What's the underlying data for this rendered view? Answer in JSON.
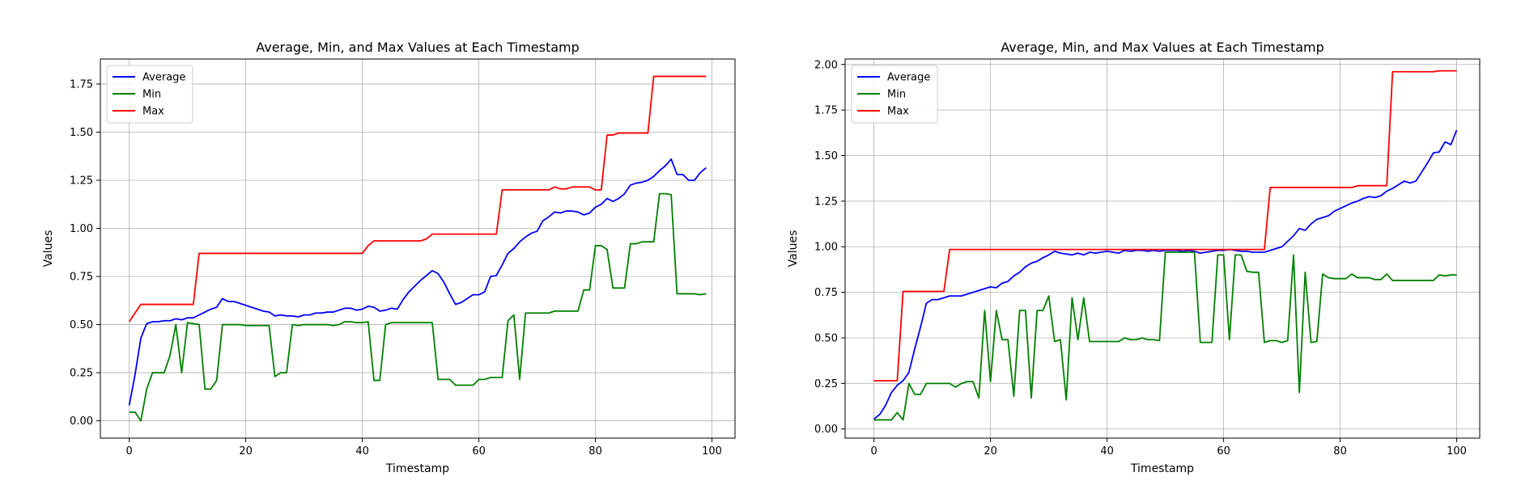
{
  "chart_data": [
    {
      "type": "line",
      "title": "Average, Min, and Max Values at Each Timestamp",
      "xlabel": "Timestamp",
      "ylabel": "Values",
      "xlim": [
        -4.95,
        103.95
      ],
      "ylim": [
        -0.09,
        1.88
      ],
      "xticks": [
        0,
        20,
        40,
        60,
        80,
        100
      ],
      "yticks": [
        0.0,
        0.25,
        0.5,
        0.75,
        1.0,
        1.25,
        1.5,
        1.75
      ],
      "ytick_labels": [
        "0.00",
        "0.25",
        "0.50",
        "0.75",
        "1.00",
        "1.25",
        "1.50",
        "1.75"
      ],
      "grid": true,
      "legend_position": "upper-left",
      "series": [
        {
          "name": "Average",
          "color": "#0000ff",
          "values": [
            0.08,
            0.24,
            0.43,
            0.505,
            0.515,
            0.515,
            0.52,
            0.52,
            0.53,
            0.525,
            0.535,
            0.535,
            0.55,
            0.565,
            0.58,
            0.59,
            0.635,
            0.62,
            0.62,
            0.61,
            0.6,
            0.59,
            0.58,
            0.57,
            0.565,
            0.545,
            0.55,
            0.545,
            0.545,
            0.54,
            0.55,
            0.55,
            0.56,
            0.56,
            0.565,
            0.565,
            0.575,
            0.585,
            0.585,
            0.575,
            0.58,
            0.595,
            0.59,
            0.57,
            0.575,
            0.585,
            0.58,
            0.63,
            0.67,
            0.7,
            0.73,
            0.755,
            0.78,
            0.765,
            0.72,
            0.66,
            0.605,
            0.615,
            0.635,
            0.655,
            0.655,
            0.67,
            0.75,
            0.755,
            0.81,
            0.87,
            0.895,
            0.93,
            0.955,
            0.975,
            0.985,
            1.04,
            1.06,
            1.085,
            1.08,
            1.09,
            1.09,
            1.085,
            1.07,
            1.08,
            1.11,
            1.125,
            1.155,
            1.14,
            1.155,
            1.18,
            1.225,
            1.235,
            1.24,
            1.25,
            1.27,
            1.3,
            1.325,
            1.36,
            1.28,
            1.28,
            1.25,
            1.25,
            1.29,
            1.315
          ]
        },
        {
          "name": "Min",
          "color": "#008000",
          "values": [
            0.045,
            0.045,
            0.0,
            0.165,
            0.25,
            0.25,
            0.25,
            0.34,
            0.5,
            0.25,
            0.51,
            0.505,
            0.5,
            0.165,
            0.165,
            0.21,
            0.5,
            0.5,
            0.5,
            0.5,
            0.495,
            0.495,
            0.495,
            0.495,
            0.495,
            0.23,
            0.25,
            0.25,
            0.5,
            0.495,
            0.5,
            0.5,
            0.5,
            0.5,
            0.5,
            0.495,
            0.5,
            0.515,
            0.515,
            0.51,
            0.51,
            0.515,
            0.21,
            0.21,
            0.5,
            0.51,
            0.51,
            0.51,
            0.51,
            0.51,
            0.51,
            0.51,
            0.51,
            0.215,
            0.215,
            0.215,
            0.185,
            0.185,
            0.185,
            0.185,
            0.215,
            0.215,
            0.225,
            0.225,
            0.225,
            0.52,
            0.55,
            0.215,
            0.56,
            0.56,
            0.56,
            0.56,
            0.56,
            0.57,
            0.57,
            0.57,
            0.57,
            0.57,
            0.68,
            0.68,
            0.91,
            0.91,
            0.89,
            0.69,
            0.69,
            0.69,
            0.92,
            0.92,
            0.93,
            0.93,
            0.93,
            1.18,
            1.18,
            1.175,
            0.66,
            0.66,
            0.66,
            0.66,
            0.655,
            0.66
          ]
        },
        {
          "name": "Max",
          "color": "#ff0000",
          "values": [
            0.515,
            0.56,
            0.605,
            0.605,
            0.605,
            0.605,
            0.605,
            0.605,
            0.605,
            0.605,
            0.605,
            0.605,
            0.87,
            0.87,
            0.87,
            0.87,
            0.87,
            0.87,
            0.87,
            0.87,
            0.87,
            0.87,
            0.87,
            0.87,
            0.87,
            0.87,
            0.87,
            0.87,
            0.87,
            0.87,
            0.87,
            0.87,
            0.87,
            0.87,
            0.87,
            0.87,
            0.87,
            0.87,
            0.87,
            0.87,
            0.87,
            0.91,
            0.935,
            0.935,
            0.935,
            0.935,
            0.935,
            0.935,
            0.935,
            0.935,
            0.935,
            0.945,
            0.97,
            0.97,
            0.97,
            0.97,
            0.97,
            0.97,
            0.97,
            0.97,
            0.97,
            0.97,
            0.97,
            0.97,
            1.2,
            1.2,
            1.2,
            1.2,
            1.2,
            1.2,
            1.2,
            1.2,
            1.2,
            1.215,
            1.205,
            1.205,
            1.215,
            1.215,
            1.215,
            1.215,
            1.2,
            1.2,
            1.485,
            1.485,
            1.495,
            1.495,
            1.495,
            1.495,
            1.495,
            1.495,
            1.79,
            1.79,
            1.79,
            1.79,
            1.79,
            1.79,
            1.79,
            1.79,
            1.79,
            1.79
          ]
        }
      ]
    },
    {
      "type": "line",
      "title": "Average, Min, and Max Values at Each Timestamp",
      "xlabel": "Timestamp",
      "ylabel": "Values",
      "xlim": [
        -4.95,
        103.95
      ],
      "ylim": [
        -0.05,
        2.03
      ],
      "xticks": [
        0,
        20,
        40,
        60,
        80,
        100
      ],
      "yticks": [
        0.0,
        0.25,
        0.5,
        0.75,
        1.0,
        1.25,
        1.5,
        1.75,
        2.0
      ],
      "ytick_labels": [
        "0.00",
        "0.25",
        "0.50",
        "0.75",
        "1.00",
        "1.25",
        "1.50",
        "1.75",
        "2.00"
      ],
      "grid": true,
      "legend_position": "upper-left",
      "series": [
        {
          "name": "Average",
          "color": "#0000ff",
          "values": [
            0.055,
            0.08,
            0.13,
            0.2,
            0.24,
            0.265,
            0.31,
            0.44,
            0.56,
            0.69,
            0.71,
            0.71,
            0.72,
            0.73,
            0.73,
            0.73,
            0.74,
            0.75,
            0.76,
            0.77,
            0.78,
            0.775,
            0.8,
            0.81,
            0.84,
            0.86,
            0.89,
            0.91,
            0.92,
            0.94,
            0.955,
            0.975,
            0.965,
            0.96,
            0.955,
            0.965,
            0.955,
            0.97,
            0.965,
            0.97,
            0.975,
            0.97,
            0.965,
            0.98,
            0.975,
            0.98,
            0.98,
            0.975,
            0.98,
            0.975,
            0.98,
            0.98,
            0.98,
            0.975,
            0.98,
            0.975,
            0.965,
            0.97,
            0.975,
            0.98,
            0.98,
            0.985,
            0.98,
            0.975,
            0.975,
            0.97,
            0.97,
            0.97,
            0.98,
            0.99,
            1.0,
            1.03,
            1.06,
            1.1,
            1.09,
            1.125,
            1.15,
            1.16,
            1.17,
            1.195,
            1.21,
            1.225,
            1.24,
            1.25,
            1.265,
            1.275,
            1.27,
            1.28,
            1.305,
            1.32,
            1.34,
            1.36,
            1.35,
            1.36,
            1.41,
            1.46,
            1.515,
            1.52,
            1.575,
            1.56,
            1.64
          ]
        },
        {
          "name": "Min",
          "color": "#008000",
          "values": [
            0.05,
            0.05,
            0.05,
            0.05,
            0.09,
            0.05,
            0.25,
            0.19,
            0.19,
            0.25,
            0.25,
            0.25,
            0.25,
            0.25,
            0.23,
            0.25,
            0.26,
            0.26,
            0.17,
            0.65,
            0.26,
            0.65,
            0.49,
            0.49,
            0.18,
            0.65,
            0.65,
            0.17,
            0.65,
            0.65,
            0.73,
            0.48,
            0.49,
            0.16,
            0.72,
            0.49,
            0.72,
            0.48,
            0.48,
            0.48,
            0.48,
            0.48,
            0.48,
            0.5,
            0.49,
            0.49,
            0.5,
            0.49,
            0.49,
            0.485,
            0.97,
            0.97,
            0.97,
            0.97,
            0.97,
            0.97,
            0.475,
            0.475,
            0.475,
            0.955,
            0.955,
            0.49,
            0.955,
            0.955,
            0.865,
            0.86,
            0.86,
            0.475,
            0.485,
            0.485,
            0.475,
            0.485,
            0.955,
            0.2,
            0.86,
            0.475,
            0.48,
            0.85,
            0.83,
            0.825,
            0.825,
            0.825,
            0.85,
            0.83,
            0.83,
            0.83,
            0.82,
            0.82,
            0.85,
            0.815,
            0.815,
            0.815,
            0.815,
            0.815,
            0.815,
            0.815,
            0.815,
            0.845,
            0.84,
            0.845,
            0.845
          ]
        },
        {
          "name": "Max",
          "color": "#ff0000",
          "values": [
            0.265,
            0.265,
            0.265,
            0.265,
            0.265,
            0.755,
            0.755,
            0.755,
            0.755,
            0.755,
            0.755,
            0.755,
            0.755,
            0.985,
            0.985,
            0.985,
            0.985,
            0.985,
            0.985,
            0.985,
            0.985,
            0.985,
            0.985,
            0.985,
            0.985,
            0.985,
            0.985,
            0.985,
            0.985,
            0.985,
            0.985,
            0.985,
            0.985,
            0.985,
            0.985,
            0.985,
            0.985,
            0.985,
            0.985,
            0.985,
            0.985,
            0.985,
            0.985,
            0.985,
            0.985,
            0.985,
            0.985,
            0.985,
            0.985,
            0.985,
            0.985,
            0.985,
            0.985,
            0.985,
            0.985,
            0.985,
            0.985,
            0.985,
            0.985,
            0.985,
            0.985,
            0.985,
            0.985,
            0.985,
            0.985,
            0.985,
            0.985,
            0.985,
            1.325,
            1.325,
            1.325,
            1.325,
            1.325,
            1.325,
            1.325,
            1.325,
            1.325,
            1.325,
            1.325,
            1.325,
            1.325,
            1.325,
            1.325,
            1.335,
            1.335,
            1.335,
            1.335,
            1.335,
            1.335,
            1.96,
            1.96,
            1.96,
            1.96,
            1.96,
            1.96,
            1.96,
            1.96,
            1.965,
            1.965,
            1.965,
            1.965
          ]
        }
      ]
    }
  ]
}
